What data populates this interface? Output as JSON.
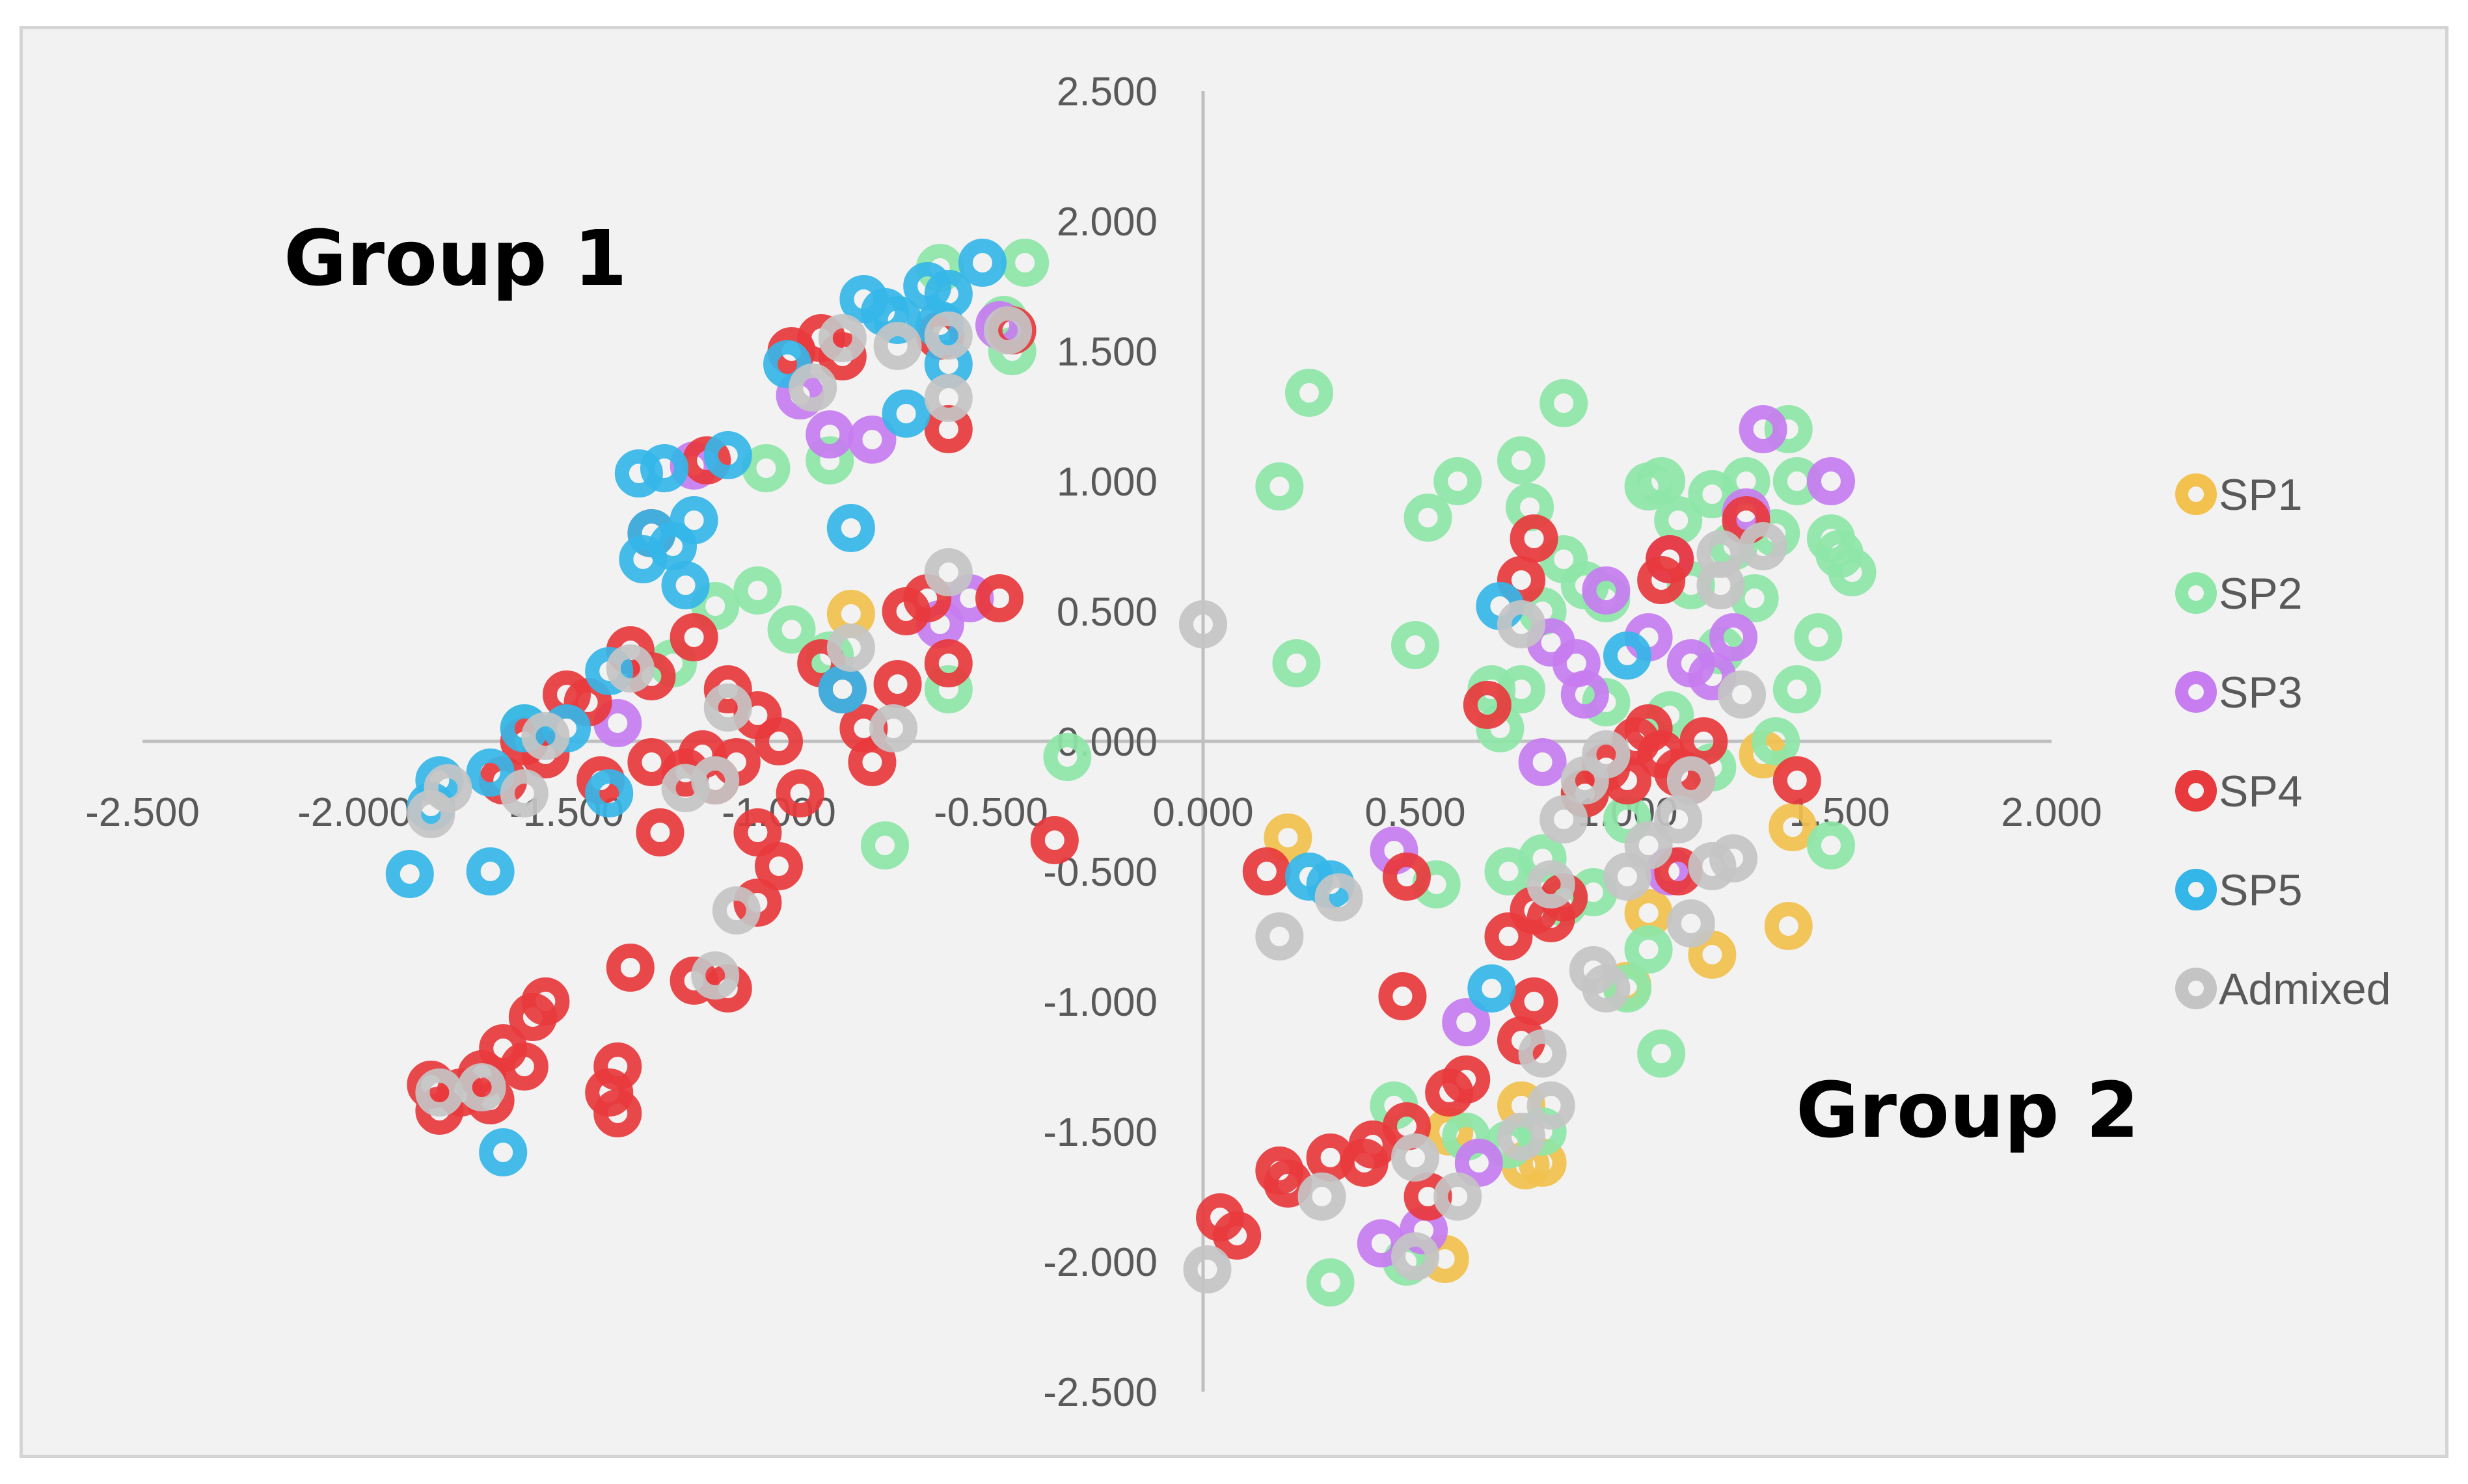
{
  "chart_data": {
    "type": "scatter",
    "title": "",
    "xlabel": "",
    "ylabel": "",
    "xlim": [
      -2.5,
      2.0
    ],
    "ylim": [
      -2.5,
      2.5
    ],
    "x_ticks": [
      "-2.500",
      "-2.000",
      "-1.500",
      "-1.000",
      "-0.500",
      "0.000",
      "0.500",
      "1.000",
      "1.500",
      "2.000"
    ],
    "y_ticks": [
      "2.500",
      "2.000",
      "1.500",
      "1.000",
      "0.500",
      "0.000",
      "-0.500",
      "-1.000",
      "-1.500",
      "-2.000",
      "-2.500"
    ],
    "grid": false,
    "legend_position": "right",
    "annotations": [
      {
        "text": "Group 1",
        "x": -1.85,
        "y": 1.85
      },
      {
        "text": "Group 2",
        "x": 1.75,
        "y": -1.45
      }
    ],
    "series": [
      {
        "name": "SP1",
        "color": "#f2c14e",
        "points": [
          [
            -0.83,
            0.49
          ],
          [
            0.2,
            -0.37
          ],
          [
            1.39,
            -0.33
          ],
          [
            1.32,
            -0.05
          ],
          [
            1.38,
            -0.71
          ],
          [
            1.2,
            -0.82
          ],
          [
            1.0,
            -0.94
          ],
          [
            1.05,
            -0.66
          ],
          [
            0.75,
            -1.4
          ],
          [
            0.76,
            -1.63
          ],
          [
            0.58,
            -1.5
          ],
          [
            0.57,
            -1.99
          ],
          [
            0.8,
            -1.62
          ]
        ]
      },
      {
        "name": "SP2",
        "color": "#8ee6a8",
        "points": [
          [
            -0.62,
            1.82
          ],
          [
            -0.42,
            1.84
          ],
          [
            -0.45,
            1.5
          ],
          [
            -0.47,
            1.62
          ],
          [
            -0.88,
            1.08
          ],
          [
            -1.03,
            1.05
          ],
          [
            -1.15,
            0.52
          ],
          [
            -1.05,
            0.58
          ],
          [
            -0.97,
            0.43
          ],
          [
            -0.88,
            0.33
          ],
          [
            -0.6,
            0.2
          ],
          [
            -0.32,
            -0.06
          ],
          [
            -0.75,
            -0.4
          ],
          [
            -1.25,
            0.3
          ],
          [
            -1.6,
            0.05
          ],
          [
            0.18,
            0.98
          ],
          [
            0.25,
            1.34
          ],
          [
            0.22,
            0.3
          ],
          [
            0.5,
            0.37
          ],
          [
            0.53,
            0.86
          ],
          [
            0.6,
            1.0
          ],
          [
            0.75,
            1.08
          ],
          [
            0.77,
            0.9
          ],
          [
            0.85,
            1.3
          ],
          [
            0.85,
            0.7
          ],
          [
            0.7,
            0.05
          ],
          [
            0.75,
            0.2
          ],
          [
            0.8,
            0.5
          ],
          [
            0.9,
            0.6
          ],
          [
            0.95,
            0.55
          ],
          [
            1.05,
            0.98
          ],
          [
            1.08,
            1.0
          ],
          [
            1.12,
            0.85
          ],
          [
            1.15,
            0.6
          ],
          [
            1.2,
            0.95
          ],
          [
            1.25,
            0.75
          ],
          [
            1.28,
            1.0
          ],
          [
            1.3,
            0.55
          ],
          [
            1.35,
            0.8
          ],
          [
            1.38,
            1.2
          ],
          [
            1.4,
            1.0
          ],
          [
            1.48,
            0.78
          ],
          [
            1.5,
            0.72
          ],
          [
            1.53,
            0.65
          ],
          [
            1.45,
            0.4
          ],
          [
            1.48,
            -0.4
          ],
          [
            1.4,
            0.2
          ],
          [
            1.35,
            0.0
          ],
          [
            1.2,
            -0.1
          ],
          [
            1.1,
            0.1
          ],
          [
            1.0,
            -0.3
          ],
          [
            0.9,
            -0.2
          ],
          [
            0.8,
            -0.45
          ],
          [
            0.72,
            -0.5
          ],
          [
            0.85,
            -0.62
          ],
          [
            0.92,
            -0.58
          ],
          [
            1.0,
            -0.95
          ],
          [
            1.05,
            -0.8
          ],
          [
            1.08,
            -1.2
          ],
          [
            0.8,
            -1.5
          ],
          [
            0.72,
            -1.55
          ],
          [
            0.45,
            -1.4
          ],
          [
            0.48,
            -2.0
          ],
          [
            0.3,
            -2.08
          ],
          [
            0.62,
            -1.52
          ],
          [
            0.55,
            -0.55
          ],
          [
            0.68,
            0.2
          ],
          [
            0.95,
            0.15
          ],
          [
            1.22,
            0.35
          ]
        ]
      },
      {
        "name": "SP3",
        "color": "#c77df0",
        "points": [
          [
            -0.95,
            1.33
          ],
          [
            -0.88,
            1.18
          ],
          [
            -0.78,
            1.16
          ],
          [
            -0.48,
            1.6
          ],
          [
            -0.55,
            0.55
          ],
          [
            -0.62,
            0.45
          ],
          [
            -1.2,
            1.06
          ],
          [
            -1.38,
            0.07
          ],
          [
            0.45,
            -0.42
          ],
          [
            0.82,
            0.38
          ],
          [
            0.88,
            0.3
          ],
          [
            0.9,
            0.18
          ],
          [
            0.95,
            0.58
          ],
          [
            1.05,
            0.4
          ],
          [
            1.1,
            0.7
          ],
          [
            1.15,
            0.3
          ],
          [
            1.2,
            0.25
          ],
          [
            1.25,
            0.4
          ],
          [
            1.28,
            0.88
          ],
          [
            1.32,
            1.2
          ],
          [
            1.48,
            1.0
          ],
          [
            1.1,
            -0.5
          ],
          [
            0.8,
            -0.08
          ],
          [
            0.62,
            -1.08
          ],
          [
            0.65,
            -1.62
          ],
          [
            0.42,
            -1.93
          ],
          [
            0.52,
            -1.88
          ]
        ]
      },
      {
        "name": "SP4",
        "color": "#e8393d",
        "points": [
          [
            -0.97,
            1.5
          ],
          [
            -0.9,
            1.55
          ],
          [
            -0.85,
            1.48
          ],
          [
            -0.6,
            1.2
          ],
          [
            -0.62,
            1.56
          ],
          [
            -0.45,
            1.58
          ],
          [
            -1.17,
            1.08
          ],
          [
            -1.3,
            0.8
          ],
          [
            -1.35,
            0.35
          ],
          [
            -1.3,
            0.25
          ],
          [
            -1.2,
            0.4
          ],
          [
            -1.12,
            0.2
          ],
          [
            -1.05,
            0.1
          ],
          [
            -1.0,
            0.0
          ],
          [
            -0.95,
            -0.2
          ],
          [
            -0.9,
            0.3
          ],
          [
            -0.85,
            0.2
          ],
          [
            -0.8,
            0.05
          ],
          [
            -0.78,
            -0.08
          ],
          [
            -0.72,
            0.22
          ],
          [
            -0.7,
            0.5
          ],
          [
            -0.65,
            0.55
          ],
          [
            -0.6,
            0.3
          ],
          [
            -0.48,
            0.55
          ],
          [
            -0.35,
            -0.38
          ],
          [
            -1.45,
            0.15
          ],
          [
            -1.5,
            0.18
          ],
          [
            -1.55,
            -0.05
          ],
          [
            -1.6,
            0.0
          ],
          [
            -1.65,
            -0.15
          ],
          [
            -1.42,
            -0.15
          ],
          [
            -1.3,
            -0.08
          ],
          [
            -1.28,
            -0.35
          ],
          [
            -1.22,
            -0.12
          ],
          [
            -1.18,
            -0.05
          ],
          [
            -1.15,
            -0.15
          ],
          [
            -1.1,
            -0.08
          ],
          [
            -1.05,
            -0.35
          ],
          [
            -1.0,
            -0.48
          ],
          [
            -1.05,
            -0.62
          ],
          [
            -1.12,
            -0.95
          ],
          [
            -1.2,
            -0.92
          ],
          [
            -1.35,
            -0.87
          ],
          [
            -1.55,
            -1.0
          ],
          [
            -1.58,
            -1.06
          ],
          [
            -1.38,
            -1.25
          ],
          [
            -1.4,
            -1.35
          ],
          [
            -1.38,
            -1.43
          ],
          [
            -1.82,
            -1.32
          ],
          [
            -1.8,
            -1.42
          ],
          [
            -1.75,
            -1.35
          ],
          [
            -1.7,
            -1.28
          ],
          [
            -1.65,
            -1.18
          ],
          [
            -1.6,
            -1.25
          ],
          [
            -1.68,
            -1.38
          ],
          [
            0.75,
            0.62
          ],
          [
            0.78,
            0.78
          ],
          [
            0.67,
            0.14
          ],
          [
            0.9,
            -0.2
          ],
          [
            0.95,
            -0.1
          ],
          [
            1.0,
            -0.15
          ],
          [
            1.02,
            0.0
          ],
          [
            1.05,
            0.05
          ],
          [
            1.08,
            -0.05
          ],
          [
            1.12,
            -0.12
          ],
          [
            1.15,
            -0.15
          ],
          [
            1.18,
            0.0
          ],
          [
            1.28,
            0.85
          ],
          [
            1.08,
            0.62
          ],
          [
            1.1,
            0.7
          ],
          [
            1.4,
            -0.15
          ],
          [
            1.12,
            -0.5
          ],
          [
            0.15,
            -0.5
          ],
          [
            0.48,
            -0.52
          ],
          [
            0.78,
            -0.65
          ],
          [
            0.82,
            -0.68
          ],
          [
            0.85,
            -0.6
          ],
          [
            0.72,
            -0.75
          ],
          [
            0.78,
            -1.0
          ],
          [
            0.75,
            -1.15
          ],
          [
            0.62,
            -1.3
          ],
          [
            0.58,
            -1.35
          ],
          [
            0.48,
            -1.48
          ],
          [
            0.4,
            -1.55
          ],
          [
            0.38,
            -1.62
          ],
          [
            0.3,
            -1.6
          ],
          [
            0.18,
            -1.65
          ],
          [
            0.2,
            -1.7
          ],
          [
            0.04,
            -1.83
          ],
          [
            0.08,
            -1.9
          ],
          [
            0.53,
            -1.75
          ],
          [
            0.47,
            -0.98
          ]
        ]
      },
      {
        "name": "SP5",
        "color": "#35b6e8",
        "points": [
          [
            -0.52,
            1.84
          ],
          [
            -0.6,
            1.72
          ],
          [
            -0.65,
            1.75
          ],
          [
            -0.72,
            1.62
          ],
          [
            -0.75,
            1.65
          ],
          [
            -0.8,
            1.7
          ],
          [
            -0.62,
            1.6
          ],
          [
            -0.6,
            1.45
          ],
          [
            -0.7,
            1.26
          ],
          [
            -0.98,
            1.45
          ],
          [
            -1.12,
            1.1
          ],
          [
            -1.2,
            0.85
          ],
          [
            -1.25,
            0.75
          ],
          [
            -1.3,
            0.8
          ],
          [
            -1.32,
            0.7
          ],
          [
            -1.22,
            0.6
          ],
          [
            -1.27,
            1.05
          ],
          [
            -1.33,
            1.03
          ],
          [
            -1.4,
            0.27
          ],
          [
            -1.5,
            0.05
          ],
          [
            -1.6,
            0.05
          ],
          [
            -1.68,
            -0.12
          ],
          [
            -1.8,
            -0.15
          ],
          [
            -1.82,
            -0.25
          ],
          [
            -1.68,
            -0.5
          ],
          [
            -1.87,
            -0.51
          ],
          [
            -1.4,
            -0.2
          ],
          [
            -1.65,
            -1.58
          ],
          [
            -0.85,
            0.2
          ],
          [
            -0.83,
            0.82
          ],
          [
            0.7,
            0.52
          ],
          [
            1.0,
            0.33
          ],
          [
            0.25,
            -0.52
          ],
          [
            0.3,
            -0.55
          ],
          [
            0.68,
            -0.95
          ]
        ]
      },
      {
        "name": "Admixed",
        "color": "#c4c4c4",
        "points": [
          [
            -0.85,
            1.55
          ],
          [
            -0.72,
            1.52
          ],
          [
            -0.6,
            1.56
          ],
          [
            -0.46,
            1.58
          ],
          [
            -0.92,
            1.36
          ],
          [
            -0.6,
            1.32
          ],
          [
            -0.6,
            0.65
          ],
          [
            -0.83,
            0.36
          ],
          [
            -0.73,
            0.05
          ],
          [
            -1.12,
            0.13
          ],
          [
            -1.15,
            -0.15
          ],
          [
            -1.22,
            -0.18
          ],
          [
            -1.35,
            0.28
          ],
          [
            -1.55,
            0.02
          ],
          [
            -1.6,
            -0.2
          ],
          [
            -1.78,
            -0.18
          ],
          [
            -1.82,
            -0.28
          ],
          [
            -1.1,
            -0.65
          ],
          [
            -1.15,
            -0.9
          ],
          [
            -1.8,
            -1.35
          ],
          [
            -1.7,
            -1.33
          ],
          [
            0.0,
            0.45
          ],
          [
            0.75,
            0.45
          ],
          [
            0.85,
            -0.3
          ],
          [
            0.9,
            -0.15
          ],
          [
            0.95,
            -0.05
          ],
          [
            1.0,
            -0.52
          ],
          [
            1.05,
            -0.4
          ],
          [
            1.12,
            -0.3
          ],
          [
            1.2,
            -0.48
          ],
          [
            1.25,
            -0.45
          ],
          [
            1.22,
            0.6
          ],
          [
            1.22,
            0.72
          ],
          [
            1.32,
            0.75
          ],
          [
            1.27,
            0.18
          ],
          [
            1.15,
            -0.15
          ],
          [
            0.82,
            -0.55
          ],
          [
            0.8,
            -1.2
          ],
          [
            0.82,
            -1.4
          ],
          [
            0.75,
            -1.52
          ],
          [
            0.92,
            -0.88
          ],
          [
            0.95,
            -0.95
          ],
          [
            1.15,
            -0.7
          ],
          [
            0.18,
            -0.75
          ],
          [
            0.32,
            -0.6
          ],
          [
            0.01,
            -2.03
          ],
          [
            0.28,
            -1.75
          ],
          [
            0.5,
            -1.6
          ],
          [
            0.5,
            -1.98
          ],
          [
            0.6,
            -1.75
          ]
        ]
      }
    ]
  }
}
